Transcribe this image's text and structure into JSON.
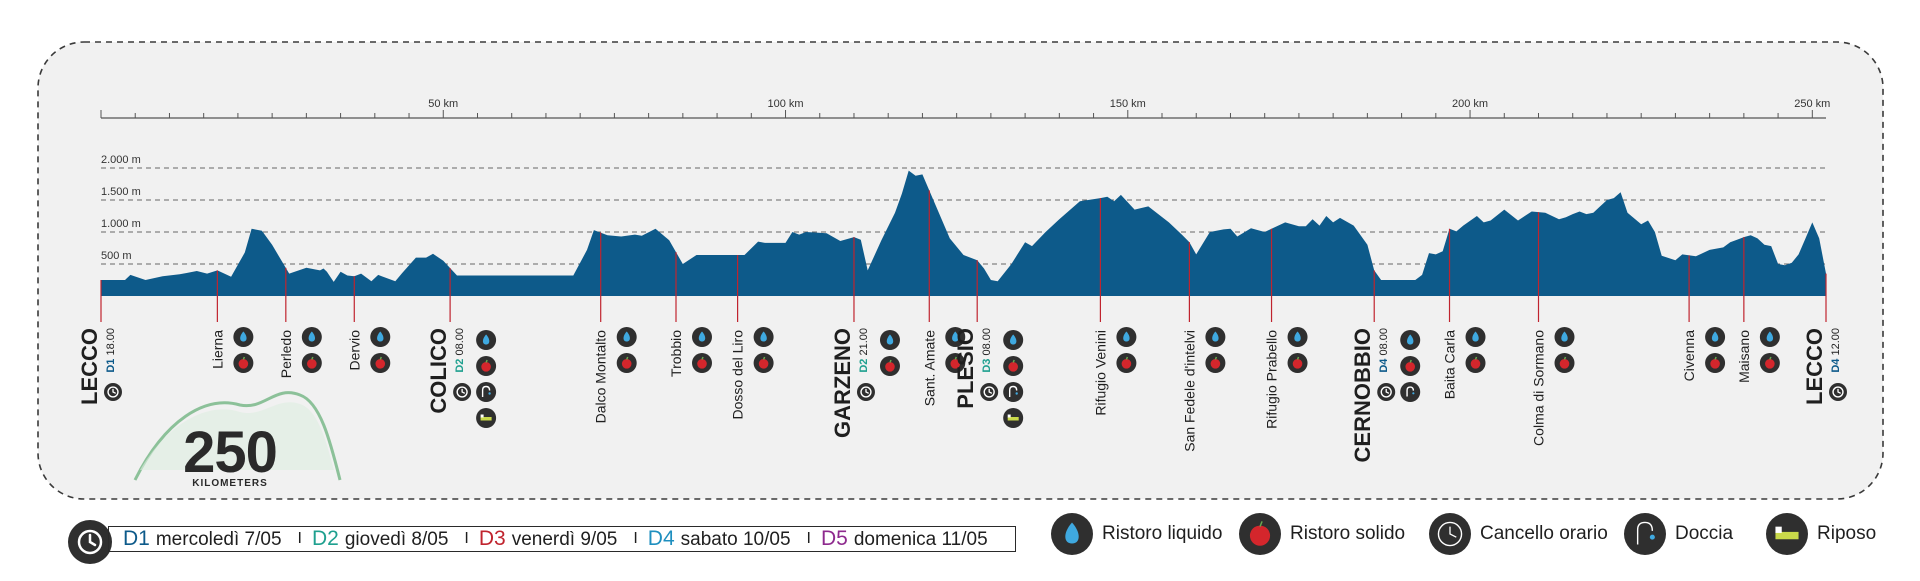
{
  "colors": {
    "profile": "#0d5a8a",
    "d1": "#0d5a8a",
    "d2": "#1fa08f",
    "d3": "#c0242e",
    "d4": "#1f8fbf",
    "d5": "#8e2a8e",
    "marker_line": "#c0242e",
    "icon_bg": "#2f2f2f",
    "logo_green": "#7ab98a"
  },
  "chart_data": {
    "type": "area",
    "x_unit": "km",
    "y_unit": "m",
    "x_ticks": [
      {
        "value": 50,
        "label": "50 km"
      },
      {
        "value": 100,
        "label": "100 km"
      },
      {
        "value": 150,
        "label": "150 km"
      },
      {
        "value": 200,
        "label": "200 km"
      },
      {
        "value": 250,
        "label": "250 km"
      }
    ],
    "y_ticks": [
      {
        "value": 500,
        "label": "500 m"
      },
      {
        "value": 1000,
        "label": "1.000 m"
      },
      {
        "value": 1500,
        "label": "1.500 m"
      },
      {
        "value": 2000,
        "label": "2.000 m"
      }
    ],
    "xlim": [
      0,
      252
    ],
    "ylim": [
      0,
      2000
    ],
    "elevation": [
      [
        0,
        250
      ],
      [
        3.5,
        250
      ],
      [
        4.3,
        330
      ],
      [
        6.5,
        250
      ],
      [
        9,
        310
      ],
      [
        11.5,
        340
      ],
      [
        12.5,
        360
      ],
      [
        14,
        390
      ],
      [
        15.5,
        350
      ],
      [
        17,
        400
      ],
      [
        19,
        300
      ],
      [
        21,
        680
      ],
      [
        22,
        1050
      ],
      [
        23.5,
        1020
      ],
      [
        25,
        800
      ],
      [
        27.5,
        350
      ],
      [
        30,
        440
      ],
      [
        32,
        400
      ],
      [
        32.5,
        430
      ],
      [
        33,
        380
      ],
      [
        34,
        220
      ],
      [
        35,
        380
      ],
      [
        36,
        320
      ],
      [
        37,
        310
      ],
      [
        38,
        350
      ],
      [
        39.5,
        230
      ],
      [
        40.5,
        330
      ],
      [
        43,
        230
      ],
      [
        44,
        360
      ],
      [
        46,
        600
      ],
      [
        47.5,
        600
      ],
      [
        48.5,
        660
      ],
      [
        50,
        550
      ],
      [
        52,
        320
      ],
      [
        60,
        320
      ],
      [
        65,
        320
      ],
      [
        69,
        320
      ],
      [
        71,
        720
      ],
      [
        72,
        1030
      ],
      [
        74,
        950
      ],
      [
        76,
        930
      ],
      [
        78,
        960
      ],
      [
        79,
        940
      ],
      [
        81,
        1050
      ],
      [
        83,
        870
      ],
      [
        85,
        500
      ],
      [
        87,
        640
      ],
      [
        89,
        640
      ],
      [
        94,
        640
      ],
      [
        96,
        850
      ],
      [
        97,
        830
      ],
      [
        100,
        830
      ],
      [
        101,
        1000
      ],
      [
        102,
        960
      ],
      [
        103,
        1000
      ],
      [
        106,
        980
      ],
      [
        108,
        860
      ],
      [
        110,
        920
      ],
      [
        111,
        880
      ],
      [
        112,
        400
      ],
      [
        114,
        870
      ],
      [
        116,
        1300
      ],
      [
        117,
        1600
      ],
      [
        118,
        1960
      ],
      [
        119,
        1880
      ],
      [
        120,
        1900
      ],
      [
        122,
        1400
      ],
      [
        124,
        900
      ],
      [
        126,
        640
      ],
      [
        128,
        560
      ],
      [
        129,
        430
      ],
      [
        130,
        250
      ],
      [
        131,
        230
      ],
      [
        133,
        500
      ],
      [
        135,
        840
      ],
      [
        136,
        780
      ],
      [
        138,
        1000
      ],
      [
        140,
        1200
      ],
      [
        143,
        1480
      ],
      [
        146,
        1530
      ],
      [
        147,
        1550
      ],
      [
        148,
        1480
      ],
      [
        149,
        1580
      ],
      [
        151,
        1350
      ],
      [
        153,
        1400
      ],
      [
        156,
        1150
      ],
      [
        158,
        950
      ],
      [
        159,
        840
      ],
      [
        160,
        650
      ],
      [
        162,
        1000
      ],
      [
        164,
        1040
      ],
      [
        165,
        1050
      ],
      [
        166,
        930
      ],
      [
        168,
        1060
      ],
      [
        170,
        1000
      ],
      [
        171,
        1050
      ],
      [
        173,
        1150
      ],
      [
        175,
        1090
      ],
      [
        176,
        1090
      ],
      [
        177,
        1200
      ],
      [
        178,
        1100
      ],
      [
        179,
        1250
      ],
      [
        180,
        1150
      ],
      [
        181,
        1220
      ],
      [
        183,
        1100
      ],
      [
        185,
        800
      ],
      [
        186,
        400
      ],
      [
        187,
        250
      ],
      [
        192,
        250
      ],
      [
        193,
        330
      ],
      [
        194,
        670
      ],
      [
        195,
        650
      ],
      [
        196,
        700
      ],
      [
        197,
        1050
      ],
      [
        198,
        1010
      ],
      [
        199,
        1100
      ],
      [
        201,
        1250
      ],
      [
        202,
        1150
      ],
      [
        203,
        1180
      ],
      [
        205,
        1350
      ],
      [
        207,
        1180
      ],
      [
        209,
        1320
      ],
      [
        211,
        1300
      ],
      [
        213,
        1200
      ],
      [
        214,
        1230
      ],
      [
        215,
        1280
      ],
      [
        216,
        1320
      ],
      [
        217,
        1280
      ],
      [
        218,
        1300
      ],
      [
        219,
        1400
      ],
      [
        220,
        1500
      ],
      [
        221,
        1530
      ],
      [
        222,
        1620
      ],
      [
        223,
        1300
      ],
      [
        225,
        1120
      ],
      [
        226,
        1180
      ],
      [
        227,
        1000
      ],
      [
        228,
        630
      ],
      [
        230,
        560
      ],
      [
        231,
        650
      ],
      [
        233,
        620
      ],
      [
        235,
        720
      ],
      [
        237,
        760
      ],
      [
        238,
        840
      ],
      [
        239,
        880
      ],
      [
        240,
        920
      ],
      [
        241,
        950
      ],
      [
        242,
        900
      ],
      [
        243,
        800
      ],
      [
        244,
        780
      ],
      [
        245,
        500
      ],
      [
        246,
        480
      ],
      [
        247,
        520
      ],
      [
        248,
        650
      ],
      [
        249,
        900
      ],
      [
        250,
        1150
      ],
      [
        251,
        900
      ],
      [
        252,
        350
      ],
      [
        254,
        300
      ],
      [
        255,
        270
      ]
    ],
    "markers": [
      {
        "km": 0,
        "name": "LECCO",
        "big": true,
        "day": "D1",
        "day_color": "d1",
        "time": "18.00",
        "icons": [
          "cancello"
        ]
      },
      {
        "km": 17,
        "name": "Lierna",
        "icons": [
          "liquido",
          "solido"
        ]
      },
      {
        "km": 27,
        "name": "Perledo",
        "icons": [
          "liquido",
          "solido"
        ]
      },
      {
        "km": 37,
        "name": "Dervio",
        "icons": [
          "liquido",
          "solido"
        ]
      },
      {
        "km": 51,
        "name": "COLICO",
        "big": true,
        "day": "D2",
        "day_color": "d2",
        "time": "08.00",
        "icons": [
          "liquido",
          "solido",
          "doccia",
          "riposo"
        ],
        "extra_left": "cancello"
      },
      {
        "km": 73,
        "name": "Dalco Montalto",
        "icons": [
          "liquido",
          "solido"
        ]
      },
      {
        "km": 84,
        "name": "Trobbio",
        "icons": [
          "liquido",
          "solido"
        ]
      },
      {
        "km": 93,
        "name": "Dosso del Liro",
        "icons": [
          "liquido",
          "solido"
        ]
      },
      {
        "km": 110,
        "name": "GARZENO",
        "big": true,
        "day": "D2",
        "day_color": "d2",
        "time": "21.00",
        "icons": [
          "liquido",
          "solido"
        ],
        "extra_left": "cancello"
      },
      {
        "km": 121,
        "name": "Sant. Amate",
        "icons": [
          "liquido",
          "solido"
        ]
      },
      {
        "km": 128,
        "name": "PLESIO",
        "big": true,
        "day": "D3",
        "day_color": "d2",
        "time": "08.00",
        "icons": [
          "liquido",
          "solido",
          "doccia",
          "riposo"
        ],
        "extra_left": "cancello"
      },
      {
        "km": 146,
        "name": "Rifugio Venini",
        "icons": [
          "liquido",
          "solido"
        ]
      },
      {
        "km": 159,
        "name": "San Fedele d'intelvi",
        "icons": [
          "liquido",
          "solido"
        ]
      },
      {
        "km": 171,
        "name": "Rifugio Prabello",
        "icons": [
          "liquido",
          "solido"
        ]
      },
      {
        "km": 186,
        "name": "CERNOBBIO",
        "big": true,
        "day": "D4",
        "day_color": "d1",
        "time": "08.00",
        "icons": [
          "liquido",
          "solido",
          "riposo"
        ],
        "extra_left": "cancello",
        "extra_doccia": true
      },
      {
        "km": 197,
        "name": "Baita Carla",
        "icons": [
          "liquido",
          "solido"
        ]
      },
      {
        "km": 210,
        "name": "Colma di Sormano",
        "icons": [
          "liquido",
          "solido"
        ]
      },
      {
        "km": 232,
        "name": "Civenna",
        "icons": [
          "liquido",
          "solido"
        ]
      },
      {
        "km": 240,
        "name": "Maisano",
        "icons": [
          "liquido",
          "solido"
        ]
      },
      {
        "km": 252,
        "name": "LECCO",
        "big": true,
        "day": "D4",
        "day_color": "d1",
        "time": "12.00",
        "icons": [
          "cancello"
        ]
      }
    ]
  },
  "logo": {
    "number": "250",
    "caption": "KILOMETERS"
  },
  "legend_days": [
    {
      "code": "D1",
      "color": "d1",
      "date": "mercoledì 7/05"
    },
    {
      "code": "D2",
      "color": "d2",
      "date": "giovedì 8/05"
    },
    {
      "code": "D3",
      "color": "d3",
      "date": "venerdì 9/05"
    },
    {
      "code": "D4",
      "color": "d4",
      "date": "sabato 10/05"
    },
    {
      "code": "D5",
      "color": "d5",
      "date": "domenica 11/05"
    }
  ],
  "legend_days_separator": "I",
  "legend_icons": [
    {
      "icon": "liquido",
      "label": "Ristoro liquido"
    },
    {
      "icon": "solido",
      "label": "Ristoro solido"
    },
    {
      "icon": "cancello",
      "label": "Cancello orario"
    },
    {
      "icon": "doccia",
      "label": "Doccia"
    },
    {
      "icon": "riposo",
      "label": "Riposo"
    }
  ]
}
